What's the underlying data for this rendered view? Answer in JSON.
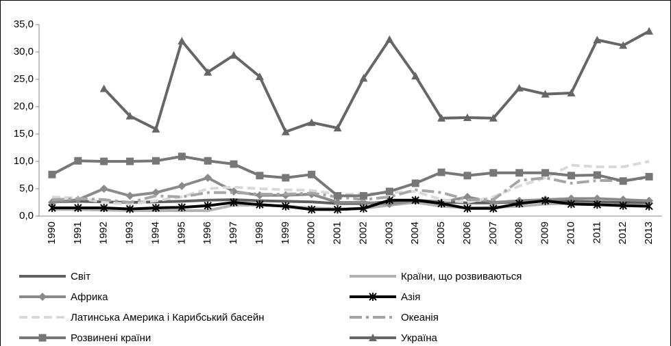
{
  "chart_data": {
    "type": "line",
    "categories": [
      "1990",
      "1991",
      "1992",
      "1993",
      "1994",
      "1995",
      "1996",
      "1997",
      "1998",
      "1999",
      "2000",
      "2001",
      "2002",
      "2003",
      "2004",
      "2005",
      "2006",
      "2007",
      "2008",
      "2009",
      "2010",
      "2011",
      "2012",
      "2013"
    ],
    "ylim": [
      0,
      35
    ],
    "yticks": [
      {
        "value": 0,
        "label": "0,0"
      },
      {
        "value": 5,
        "label": "5,0"
      },
      {
        "value": 10,
        "label": "10,0"
      },
      {
        "value": 15,
        "label": "15,0"
      },
      {
        "value": 20,
        "label": "20,0"
      },
      {
        "value": 25,
        "label": "25,0"
      },
      {
        "value": 30,
        "label": "30,0"
      },
      {
        "value": 35,
        "label": "35,0"
      }
    ],
    "grid": false,
    "series": [
      {
        "name": "Світ",
        "color": "#5f5f5f",
        "dash": "solid",
        "marker": "none",
        "values": [
          2.6,
          2.7,
          2.6,
          2.5,
          2.6,
          2.7,
          2.9,
          3.0,
          2.8,
          2.7,
          2.6,
          2.3,
          2.3,
          2.6,
          2.9,
          2.6,
          2.4,
          2.4,
          2.6,
          2.8,
          2.7,
          2.6,
          2.5,
          2.5
        ]
      },
      {
        "name": "Країни, що розвиваються",
        "color": "#b3b3b3",
        "dash": "solid",
        "marker": "none",
        "values": [
          1.2,
          1.2,
          1.1,
          1.0,
          1.0,
          1.0,
          1.0,
          2.0,
          2.0,
          1.8,
          1.5,
          1.3,
          1.4,
          2.0,
          2.5,
          1.8,
          1.5,
          1.6,
          1.8,
          2.2,
          2.3,
          2.2,
          2.0,
          2.0
        ]
      },
      {
        "name": "Африка",
        "color": "#8a8a8a",
        "dash": "solid",
        "marker": "diamond",
        "values": [
          2.5,
          3.0,
          5.0,
          3.7,
          4.3,
          5.5,
          7.0,
          4.5,
          3.8,
          3.8,
          4.0,
          2.5,
          2.5,
          2.2,
          2.8,
          2.5,
          3.5,
          2.5,
          2.8,
          3.0,
          3.2,
          3.2,
          3.0,
          2.8
        ]
      },
      {
        "name": "Азія",
        "color": "#000000",
        "dash": "solid",
        "marker": "asterisk",
        "values": [
          1.5,
          1.5,
          1.5,
          1.3,
          1.5,
          1.6,
          1.9,
          2.5,
          2.1,
          1.8,
          1.2,
          1.2,
          1.4,
          2.9,
          2.9,
          2.3,
          1.4,
          1.4,
          2.3,
          2.8,
          2.2,
          2.1,
          1.9,
          1.8
        ]
      },
      {
        "name": "Латинська Америка і Карибський басейн",
        "color": "#d9d9d9",
        "dash": "dashed",
        "marker": "none",
        "values": [
          3.5,
          3.3,
          2.5,
          2.2,
          2.8,
          3.5,
          5.0,
          5.3,
          5.0,
          4.8,
          4.7,
          4.0,
          4.0,
          4.3,
          4.5,
          3.0,
          2.5,
          3.5,
          5.5,
          7.0,
          9.3,
          9.0,
          9.0,
          10.0
        ]
      },
      {
        "name": "Океанія",
        "color": "#a6a6a6",
        "dash": "dashdot",
        "marker": "none",
        "values": [
          3.0,
          3.2,
          3.0,
          2.5,
          3.7,
          3.5,
          4.3,
          4.3,
          4.0,
          4.0,
          4.2,
          3.5,
          3.0,
          3.5,
          4.8,
          4.3,
          3.0,
          3.0,
          6.5,
          7.0,
          6.0,
          6.5,
          6.5,
          7.0
        ]
      },
      {
        "name": "Розвинені країни",
        "color": "#777777",
        "dash": "solid",
        "marker": "square",
        "values": [
          7.6,
          10.1,
          10.0,
          10.0,
          10.1,
          10.9,
          10.1,
          9.5,
          7.4,
          7.0,
          7.6,
          3.7,
          3.7,
          4.5,
          6.0,
          8.0,
          7.4,
          7.9,
          7.9,
          7.9,
          7.4,
          7.5,
          6.4,
          7.2
        ]
      },
      {
        "name": "Україна",
        "color": "#666666",
        "dash": "solid",
        "marker": "triangle",
        "values": [
          null,
          null,
          23.3,
          18.3,
          15.9,
          32.0,
          26.3,
          29.4,
          25.5,
          15.4,
          17.1,
          16.1,
          25.2,
          32.3,
          25.6,
          17.9,
          18.0,
          17.9,
          23.4,
          22.3,
          22.5,
          32.2,
          31.2,
          33.8
        ]
      }
    ]
  }
}
